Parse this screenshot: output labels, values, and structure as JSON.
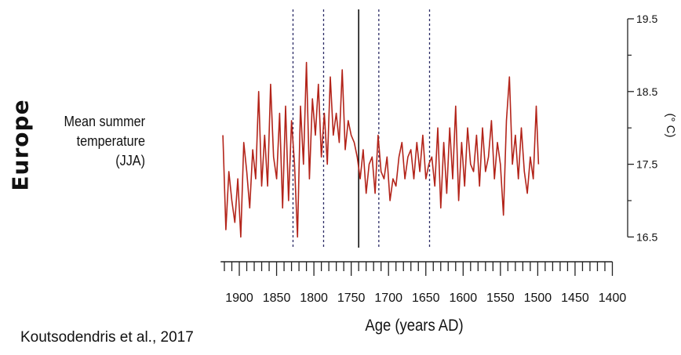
{
  "region_label": "Europe",
  "citation": "Koutsodendris et al., 2017",
  "chart_data": {
    "type": "line",
    "series_label_line1": "Mean summer",
    "series_label_line2": "temperature (JJA)",
    "xlabel": "Age (years AD)",
    "ylabel": "(° C)",
    "x_reversed": true,
    "xlim": [
      1925,
      1400
    ],
    "ylim": [
      16.4,
      19.5
    ],
    "x_ticks": [
      1900,
      1850,
      1800,
      1750,
      1700,
      1650,
      1600,
      1550,
      1500,
      1450,
      1400
    ],
    "x_minor_step": 10,
    "y_ticks": [
      "19.5",
      "18.5",
      "17.5",
      "16.5"
    ],
    "y_minor_ticks": [
      19.0,
      18.0,
      17.0
    ],
    "grid": false,
    "line_color": "#b3241a",
    "event_lines": [
      {
        "x": 1828,
        "style": "dotted"
      },
      {
        "x": 1787,
        "style": "dotted"
      },
      {
        "x": 1740,
        "style": "solid"
      },
      {
        "x": 1713,
        "style": "dotted"
      },
      {
        "x": 1645,
        "style": "dotted"
      }
    ],
    "series": [
      {
        "x": [
          1922,
          1918,
          1914,
          1910,
          1906,
          1902,
          1898,
          1894,
          1890,
          1886,
          1882,
          1878,
          1874,
          1870,
          1866,
          1862,
          1858,
          1854,
          1850,
          1846,
          1842,
          1838,
          1834,
          1830,
          1826,
          1822,
          1818,
          1814,
          1810,
          1806,
          1802,
          1798,
          1794,
          1790,
          1786,
          1782,
          1778,
          1774,
          1770,
          1766,
          1762,
          1758,
          1754,
          1750,
          1746,
          1742,
          1738,
          1734,
          1730,
          1726,
          1722,
          1718,
          1714,
          1710,
          1706,
          1702,
          1698,
          1694,
          1690,
          1686,
          1682,
          1678,
          1674,
          1670,
          1666,
          1662,
          1658,
          1654,
          1650,
          1646,
          1642,
          1638,
          1634,
          1630,
          1626,
          1622,
          1618,
          1614,
          1610,
          1606,
          1602,
          1598,
          1594,
          1590,
          1586,
          1582,
          1578,
          1574,
          1570,
          1566,
          1562,
          1558,
          1554,
          1550,
          1546,
          1542,
          1538,
          1534,
          1530,
          1526,
          1522,
          1518,
          1514,
          1510,
          1506,
          1502,
          1499
        ],
        "values": [
          17.9,
          16.6,
          17.4,
          17.0,
          16.7,
          17.3,
          16.5,
          17.8,
          17.4,
          16.9,
          17.7,
          17.3,
          18.5,
          17.2,
          17.9,
          17.2,
          18.6,
          17.6,
          17.3,
          18.2,
          16.9,
          18.3,
          17.0,
          18.1,
          17.5,
          16.5,
          18.3,
          17.5,
          18.9,
          17.3,
          18.4,
          17.9,
          18.6,
          17.6,
          18.2,
          17.5,
          18.7,
          17.9,
          18.2,
          17.8,
          18.8,
          17.7,
          18.1,
          17.9,
          17.8,
          17.6,
          17.3,
          17.7,
          17.1,
          17.5,
          17.6,
          17.1,
          17.9,
          17.4,
          17.3,
          17.6,
          17.0,
          17.3,
          17.2,
          17.6,
          17.8,
          17.3,
          17.6,
          17.7,
          17.3,
          17.8,
          17.4,
          17.9,
          17.3,
          17.5,
          17.6,
          17.2,
          18.0,
          16.9,
          17.8,
          17.1,
          18.0,
          17.3,
          18.3,
          17.0,
          17.8,
          17.2,
          18.0,
          17.5,
          17.4,
          17.9,
          17.2,
          18.0,
          17.4,
          17.6,
          18.1,
          17.3,
          17.8,
          17.5,
          16.8,
          18.1,
          18.7,
          17.5,
          17.9,
          17.3,
          18.0,
          17.4,
          17.1,
          17.6,
          17.3,
          18.3,
          17.5
        ]
      }
    ]
  }
}
